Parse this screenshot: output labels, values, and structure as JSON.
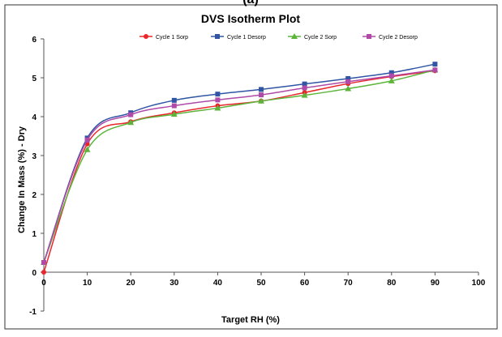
{
  "header_fragment": "(a)",
  "chart_data": {
    "type": "line",
    "title": "DVS Isotherm Plot",
    "xlabel": "Target RH (%)",
    "ylabel": "Change In Mass (%) - Dry",
    "xlim": [
      0,
      100
    ],
    "ylim": [
      -1,
      6
    ],
    "x_ticks": [
      "0",
      "10",
      "20",
      "30",
      "40",
      "50",
      "60",
      "70",
      "80",
      "90",
      "100"
    ],
    "y_ticks": [
      "-1",
      "0",
      "1",
      "2",
      "3",
      "4",
      "5",
      "6"
    ],
    "grid": false,
    "legend_position": "top",
    "x": [
      0,
      10,
      20,
      30,
      40,
      50,
      60,
      70,
      80,
      90
    ],
    "series": [
      {
        "name": "Cycle 1 Sorp",
        "color": "#e8262b",
        "marker": "circle",
        "values": [
          0.0,
          3.3,
          3.87,
          4.1,
          4.28,
          4.4,
          4.62,
          4.85,
          5.03,
          5.18
        ]
      },
      {
        "name": "Cycle 1 Desorp",
        "color": "#2f55a4",
        "marker": "square",
        "values": [
          0.25,
          3.45,
          4.1,
          4.42,
          4.58,
          4.7,
          4.84,
          4.98,
          5.13,
          5.35
        ]
      },
      {
        "name": "Cycle 2 Sorp",
        "color": "#5cb53a",
        "marker": "triangle",
        "values": [
          0.25,
          3.15,
          3.85,
          4.06,
          4.22,
          4.4,
          4.55,
          4.72,
          4.92,
          5.2
        ]
      },
      {
        "name": "Cycle 2 Desorp",
        "color": "#b04aa8",
        "marker": "square",
        "values": [
          0.25,
          3.4,
          4.05,
          4.28,
          4.43,
          4.56,
          4.74,
          4.9,
          5.05,
          5.2
        ]
      }
    ]
  }
}
